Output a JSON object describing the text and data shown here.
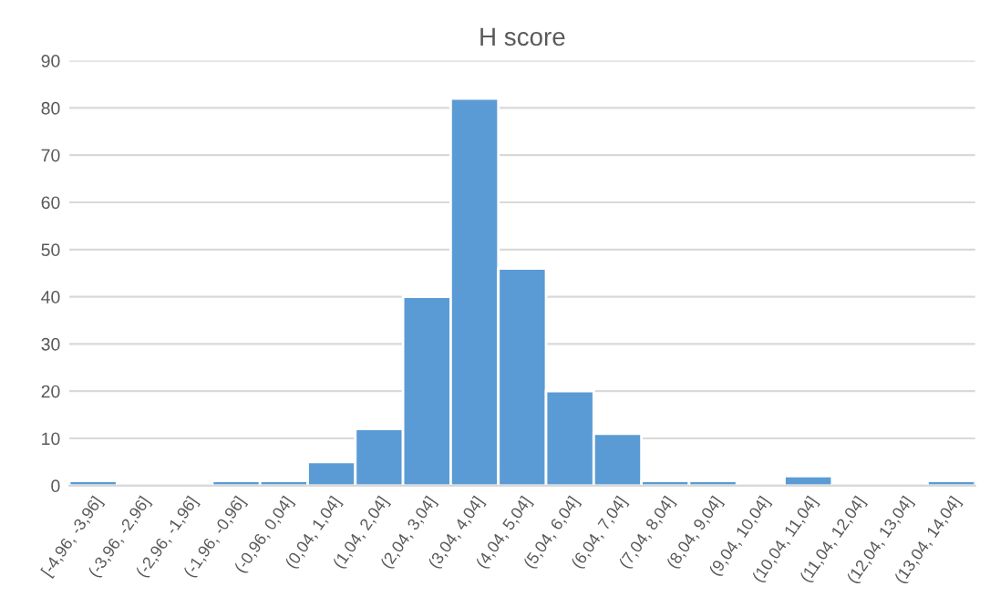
{
  "chart_data": {
    "type": "bar",
    "title": "H score",
    "categories": [
      "[-4,96, -3,96]",
      "(-3,96, -2,96]",
      "(-2,96, -1,96]",
      "(-1,96, -0,96]",
      "(-0,96, 0,04]",
      "(0,04, 1,04]",
      "(1,04, 2,04]",
      "(2,04, 3,04]",
      "(3,04, 4,04]",
      "(4,04, 5,04]",
      "(5,04, 6,04]",
      "(6,04, 7,04]",
      "(7,04, 8,04]",
      "(8,04, 9,04]",
      "(9,04, 10,04]",
      "(10,04, 11,04]",
      "(11,04, 12,04]",
      "(12,04, 13,04]",
      "(13,04, 14,04]"
    ],
    "values": [
      1,
      0,
      0,
      1,
      1,
      5,
      12,
      40,
      82,
      46,
      20,
      11,
      1,
      1,
      0,
      2,
      0,
      0,
      1
    ],
    "color": "#5b9bd5",
    "ylim": [
      0,
      90
    ],
    "yticks": [
      0,
      10,
      20,
      30,
      40,
      50,
      60,
      70,
      80,
      90
    ],
    "grid": "y"
  }
}
